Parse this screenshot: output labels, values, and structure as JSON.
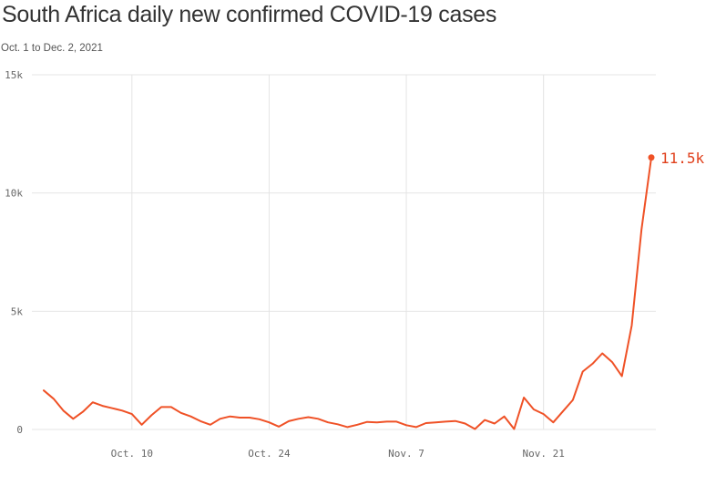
{
  "header": {
    "title": "South Africa daily new confirmed COVID-19 cases",
    "subtitle": "Oct. 1 to Dec. 2, 2021"
  },
  "colors": {
    "series": "#ef5126",
    "grid": "#e4e4e4",
    "label": "#e0401c"
  },
  "chart_data": {
    "type": "line",
    "title": "South Africa daily new confirmed COVID-19 cases",
    "subtitle": "Oct. 1 to Dec. 2, 2021",
    "xlabel": "",
    "ylabel": "",
    "x_range": [
      "2021-10-01",
      "2021-12-02"
    ],
    "ylim": [
      0,
      15000
    ],
    "y_ticks": [
      0,
      5000,
      10000,
      15000
    ],
    "y_tick_labels": [
      "0",
      "5k",
      "10k",
      "15k"
    ],
    "x_ticks": [
      "2021-10-10",
      "2021-10-24",
      "2021-11-07",
      "2021-11-21"
    ],
    "x_tick_labels": [
      "Oct. 10",
      "Oct. 24",
      "Nov. 7",
      "Nov. 21"
    ],
    "grid": true,
    "end_label": "11.5k",
    "series": [
      {
        "x": [
          "2021-10-01",
          "2021-10-02",
          "2021-10-03",
          "2021-10-04",
          "2021-10-05",
          "2021-10-06",
          "2021-10-07",
          "2021-10-08",
          "2021-10-09",
          "2021-10-10",
          "2021-10-11",
          "2021-10-12",
          "2021-10-13",
          "2021-10-14",
          "2021-10-15",
          "2021-10-16",
          "2021-10-17",
          "2021-10-18",
          "2021-10-19",
          "2021-10-20",
          "2021-10-21",
          "2021-10-22",
          "2021-10-23",
          "2021-10-24",
          "2021-10-25",
          "2021-10-26",
          "2021-10-27",
          "2021-10-28",
          "2021-10-29",
          "2021-10-30",
          "2021-10-31",
          "2021-11-01",
          "2021-11-02",
          "2021-11-03",
          "2021-11-04",
          "2021-11-05",
          "2021-11-06",
          "2021-11-07",
          "2021-11-08",
          "2021-11-09",
          "2021-11-10",
          "2021-11-11",
          "2021-11-12",
          "2021-11-13",
          "2021-11-14",
          "2021-11-15",
          "2021-11-16",
          "2021-11-17",
          "2021-11-18",
          "2021-11-19",
          "2021-11-20",
          "2021-11-21",
          "2021-11-22",
          "2021-11-23",
          "2021-11-24",
          "2021-11-25",
          "2021-11-26",
          "2021-11-27",
          "2021-11-28",
          "2021-11-29",
          "2021-11-30",
          "2021-12-01",
          "2021-12-02"
        ],
        "values": [
          1650,
          1300,
          800,
          450,
          750,
          1150,
          1000,
          900,
          800,
          650,
          200,
          600,
          950,
          950,
          700,
          550,
          350,
          200,
          450,
          550,
          500,
          500,
          430,
          300,
          120,
          350,
          450,
          520,
          450,
          300,
          220,
          100,
          200,
          320,
          300,
          330,
          330,
          180,
          100,
          270,
          300,
          330,
          360,
          250,
          20,
          400,
          250,
          550,
          20,
          1350,
          850,
          650,
          300,
          780,
          1250,
          2450,
          2780,
          3220,
          2850,
          2250,
          4400,
          8450,
          11500
        ]
      }
    ]
  }
}
